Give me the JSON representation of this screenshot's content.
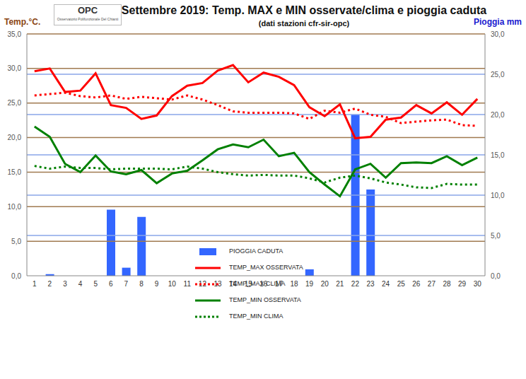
{
  "chart_data": {
    "type": "combo",
    "title": "Settembre 2019: Temp. MAX e MIN osservate/clima e pioggia caduta",
    "subtitle": "(dati stazioni cfr-sir-opc)",
    "annotations": [
      "OPC",
      "Osservatorio Polifunzionale Del Chianti"
    ],
    "y_label": "Temp.°C.",
    "y2_label": "Pioggia mm",
    "x": [
      1,
      2,
      3,
      4,
      5,
      6,
      7,
      8,
      9,
      10,
      11,
      12,
      13,
      14,
      15,
      16,
      17,
      18,
      19,
      20,
      21,
      22,
      23,
      24,
      25,
      26,
      27,
      28,
      29,
      30
    ],
    "ylim": [
      0,
      35
    ],
    "yticks": [
      {
        "value": 0,
        "label": "0,0"
      },
      {
        "value": 5,
        "label": "5,0"
      },
      {
        "value": 10,
        "label": "10,0"
      },
      {
        "value": 15,
        "label": "15,0"
      },
      {
        "value": 20,
        "label": "20,0"
      },
      {
        "value": 25,
        "label": "25,0"
      },
      {
        "value": 30,
        "label": "30,0"
      },
      {
        "value": 35,
        "label": "35,0"
      }
    ],
    "y2lim": [
      0,
      30
    ],
    "y2ticks": [
      {
        "value": 0,
        "label": "0,0"
      },
      {
        "value": 5,
        "label": "5,0"
      },
      {
        "value": 10,
        "label": "10,0"
      },
      {
        "value": 15,
        "label": "15,0"
      },
      {
        "value": 20,
        "label": "20,0"
      },
      {
        "value": 25,
        "label": "25,0"
      },
      {
        "value": 30,
        "label": "30,0"
      }
    ],
    "grid": true,
    "legend": "center",
    "series": [
      {
        "name": "PIOGGIA CADUTA",
        "type": "bar",
        "axis": "y2",
        "color": "#3366ff",
        "values": [
          0,
          0.2,
          0,
          0,
          0,
          8.2,
          1.0,
          7.3,
          0,
          0,
          0,
          0,
          0,
          0,
          0,
          0,
          0,
          0,
          0.8,
          0,
          0,
          20.0,
          10.7,
          0,
          0,
          0,
          0,
          0,
          0,
          0
        ]
      },
      {
        "name": "TEMP_MAX OSSERVATA",
        "type": "line",
        "color": "#ff0000",
        "line_style": "solid",
        "values": [
          29.6,
          30.0,
          26.6,
          26.8,
          29.3,
          24.7,
          24.3,
          22.7,
          23.2,
          26.0,
          27.5,
          27.9,
          29.7,
          30.5,
          28.0,
          29.4,
          28.8,
          27.6,
          24.4,
          23.1,
          24.8,
          19.9,
          20.1,
          22.6,
          22.9,
          24.7,
          23.5,
          25.1,
          23.3,
          25.6
        ]
      },
      {
        "name": "TEMP_MAX CLIMA",
        "type": "line",
        "color": "#ff0000",
        "line_style": "dotted",
        "values": [
          26.1,
          26.3,
          26.5,
          26.0,
          25.8,
          26.1,
          25.6,
          25.9,
          25.7,
          25.5,
          26.1,
          25.5,
          24.7,
          23.8,
          23.6,
          23.6,
          23.6,
          23.5,
          22.7,
          23.9,
          23.6,
          24.2,
          23.3,
          23.0,
          22.1,
          22.3,
          22.5,
          22.6,
          21.8,
          21.7
        ]
      },
      {
        "name": "TEMP_MIN OSSERVATA",
        "type": "line",
        "color": "#008000",
        "line_style": "solid",
        "values": [
          21.6,
          20.1,
          16.2,
          15.0,
          17.4,
          15.1,
          14.7,
          15.3,
          13.4,
          14.8,
          15.2,
          16.7,
          18.3,
          19.0,
          18.6,
          19.7,
          17.3,
          17.8,
          15.0,
          13.2,
          11.5,
          15.4,
          16.2,
          14.2,
          16.3,
          16.4,
          16.3,
          17.3,
          16.0,
          17.1
        ]
      },
      {
        "name": "TEMP_MIN CLIMA",
        "type": "line",
        "color": "#008000",
        "line_style": "dotted",
        "values": [
          15.9,
          15.5,
          15.8,
          15.6,
          15.6,
          15.4,
          15.5,
          15.5,
          15.5,
          15.4,
          15.8,
          15.5,
          15.0,
          14.7,
          14.5,
          14.6,
          14.5,
          14.5,
          14.1,
          13.5,
          14.2,
          14.5,
          14.1,
          13.5,
          13.2,
          12.8,
          12.7,
          13.3,
          13.2,
          13.2
        ]
      }
    ]
  }
}
